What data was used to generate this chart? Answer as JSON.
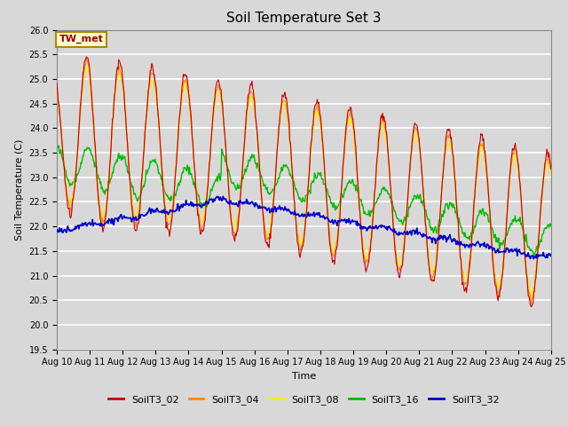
{
  "title": "Soil Temperature Set 3",
  "xlabel": "Time",
  "ylabel": "Soil Temperature (C)",
  "ylim": [
    19.5,
    26.0
  ],
  "annotation_text": "TW_met",
  "annotation_bg": "#FFFFCC",
  "annotation_text_color": "#990000",
  "annotation_border_color": "#AA8800",
  "bg_color": "#D8D8D8",
  "plot_bg_color": "#D8D8D8",
  "colors": {
    "SoilT3_02": "#CC0000",
    "SoilT3_04": "#FF8800",
    "SoilT3_08": "#FFEE00",
    "SoilT3_16": "#00BB00",
    "SoilT3_32": "#0000CC"
  },
  "xtick_labels": [
    "Aug 10",
    "Aug 11",
    "Aug 12",
    "Aug 13",
    "Aug 14",
    "Aug 15",
    "Aug 16",
    "Aug 17",
    "Aug 18",
    "Aug 19",
    "Aug 20",
    "Aug 21",
    "Aug 22",
    "Aug 23",
    "Aug 24",
    "Aug 25"
  ],
  "ytick_values": [
    19.5,
    20.0,
    20.5,
    21.0,
    21.5,
    22.0,
    22.5,
    23.0,
    23.5,
    24.0,
    24.5,
    25.0,
    25.5,
    26.0
  ],
  "grid_color": "#BBBBBB",
  "title_fontsize": 11
}
